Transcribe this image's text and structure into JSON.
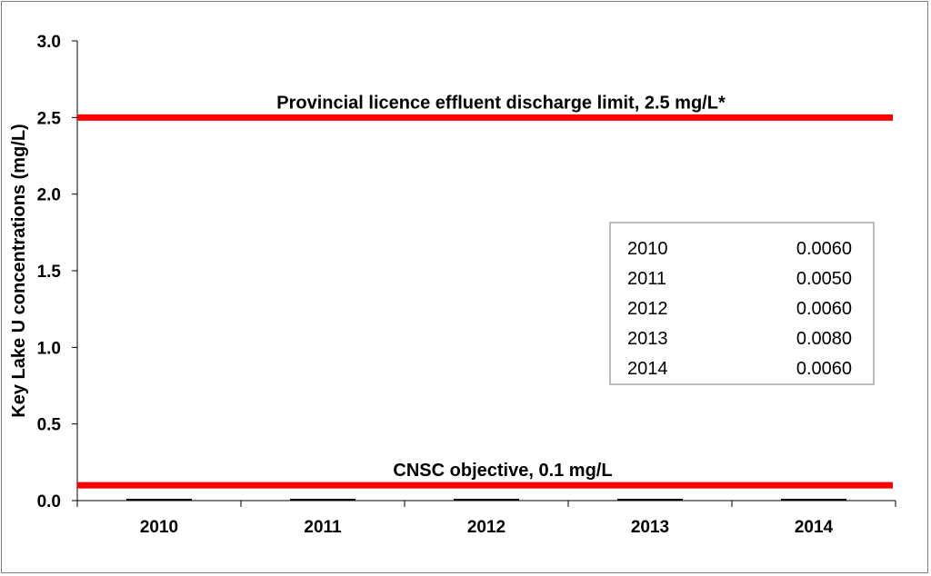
{
  "chart_data": {
    "type": "bar",
    "title": "",
    "xlabel": "",
    "ylabel": "Key Lake U concentrations (mg/L)",
    "categories": [
      "2010",
      "2011",
      "2012",
      "2013",
      "2014"
    ],
    "values": [
      0.006,
      0.005,
      0.006,
      0.008,
      0.006
    ],
    "ylim": [
      0,
      3.0
    ],
    "yticks": [
      "0.0",
      "0.5",
      "1.0",
      "1.5",
      "2.0",
      "2.5",
      "3.0"
    ],
    "grid": false,
    "legend": "none",
    "bar_color": "#000000",
    "reference_lines": [
      {
        "label": "Provincial licence effluent discharge limit, 2.5 mg/L*",
        "value": 2.5,
        "color": "#ff0000"
      },
      {
        "label": "CNSC objective, 0.1 mg/L",
        "value": 0.1,
        "color": "#ff0000"
      }
    ],
    "data_table": [
      {
        "year": "2010",
        "value": "0.0060"
      },
      {
        "year": "2011",
        "value": "0.0050"
      },
      {
        "year": "2012",
        "value": "0.0060"
      },
      {
        "year": "2013",
        "value": "0.0080"
      },
      {
        "year": "2014",
        "value": "0.0060"
      }
    ]
  }
}
